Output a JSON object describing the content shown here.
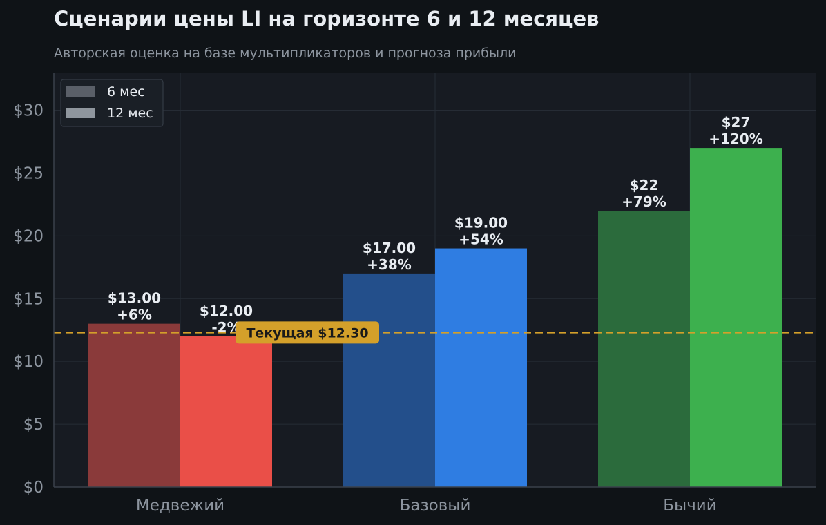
{
  "title": "Сценарии цены LI на горизонте 6 и 12 месяцев",
  "subtitle": "Авторская оценка на базе мультипликаторов и прогноза прибыли",
  "colors": {
    "background": "#0f1317",
    "plot_background": "#171b22",
    "grid": "#262c35",
    "tick_text": "#8d959f",
    "label_text": "#e9edf2",
    "current_line": "#d4a02a",
    "bear_6m": "#8a3a3a",
    "bear_12m": "#ea4f48",
    "base_6m": "#234f8b",
    "base_12m": "#2f7de2",
    "bull_6m": "#2b6b3c",
    "bull_12m": "#3db04e",
    "legend_6m": "#5a5f68",
    "legend_12m": "#8f969e"
  },
  "chart_data": {
    "type": "bar",
    "categories": [
      "Медвежий",
      "Базовый",
      "Бычий"
    ],
    "series": [
      {
        "name": "6 мес",
        "values": [
          13,
          17,
          22
        ],
        "labels": [
          "$13.00\n+6%",
          "$17.00\n+38%",
          "$22\n+79%"
        ]
      },
      {
        "name": "12 мес",
        "values": [
          12,
          19,
          27
        ],
        "labels": [
          "$12.00\n-2%",
          "$19.00\n+54%",
          "$27\n+120%"
        ]
      }
    ],
    "y_ticks": [
      0,
      5,
      10,
      15,
      20,
      25,
      30
    ],
    "y_tick_labels": [
      "$0",
      "$5",
      "$10",
      "$15",
      "$20",
      "$25",
      "$30"
    ],
    "ylim": [
      0,
      33
    ],
    "xlabel": "",
    "ylabel": "",
    "grid": true,
    "legend_position": "top-left",
    "reference_line": {
      "value": 12.3,
      "label": "Текущая $12.30"
    }
  }
}
